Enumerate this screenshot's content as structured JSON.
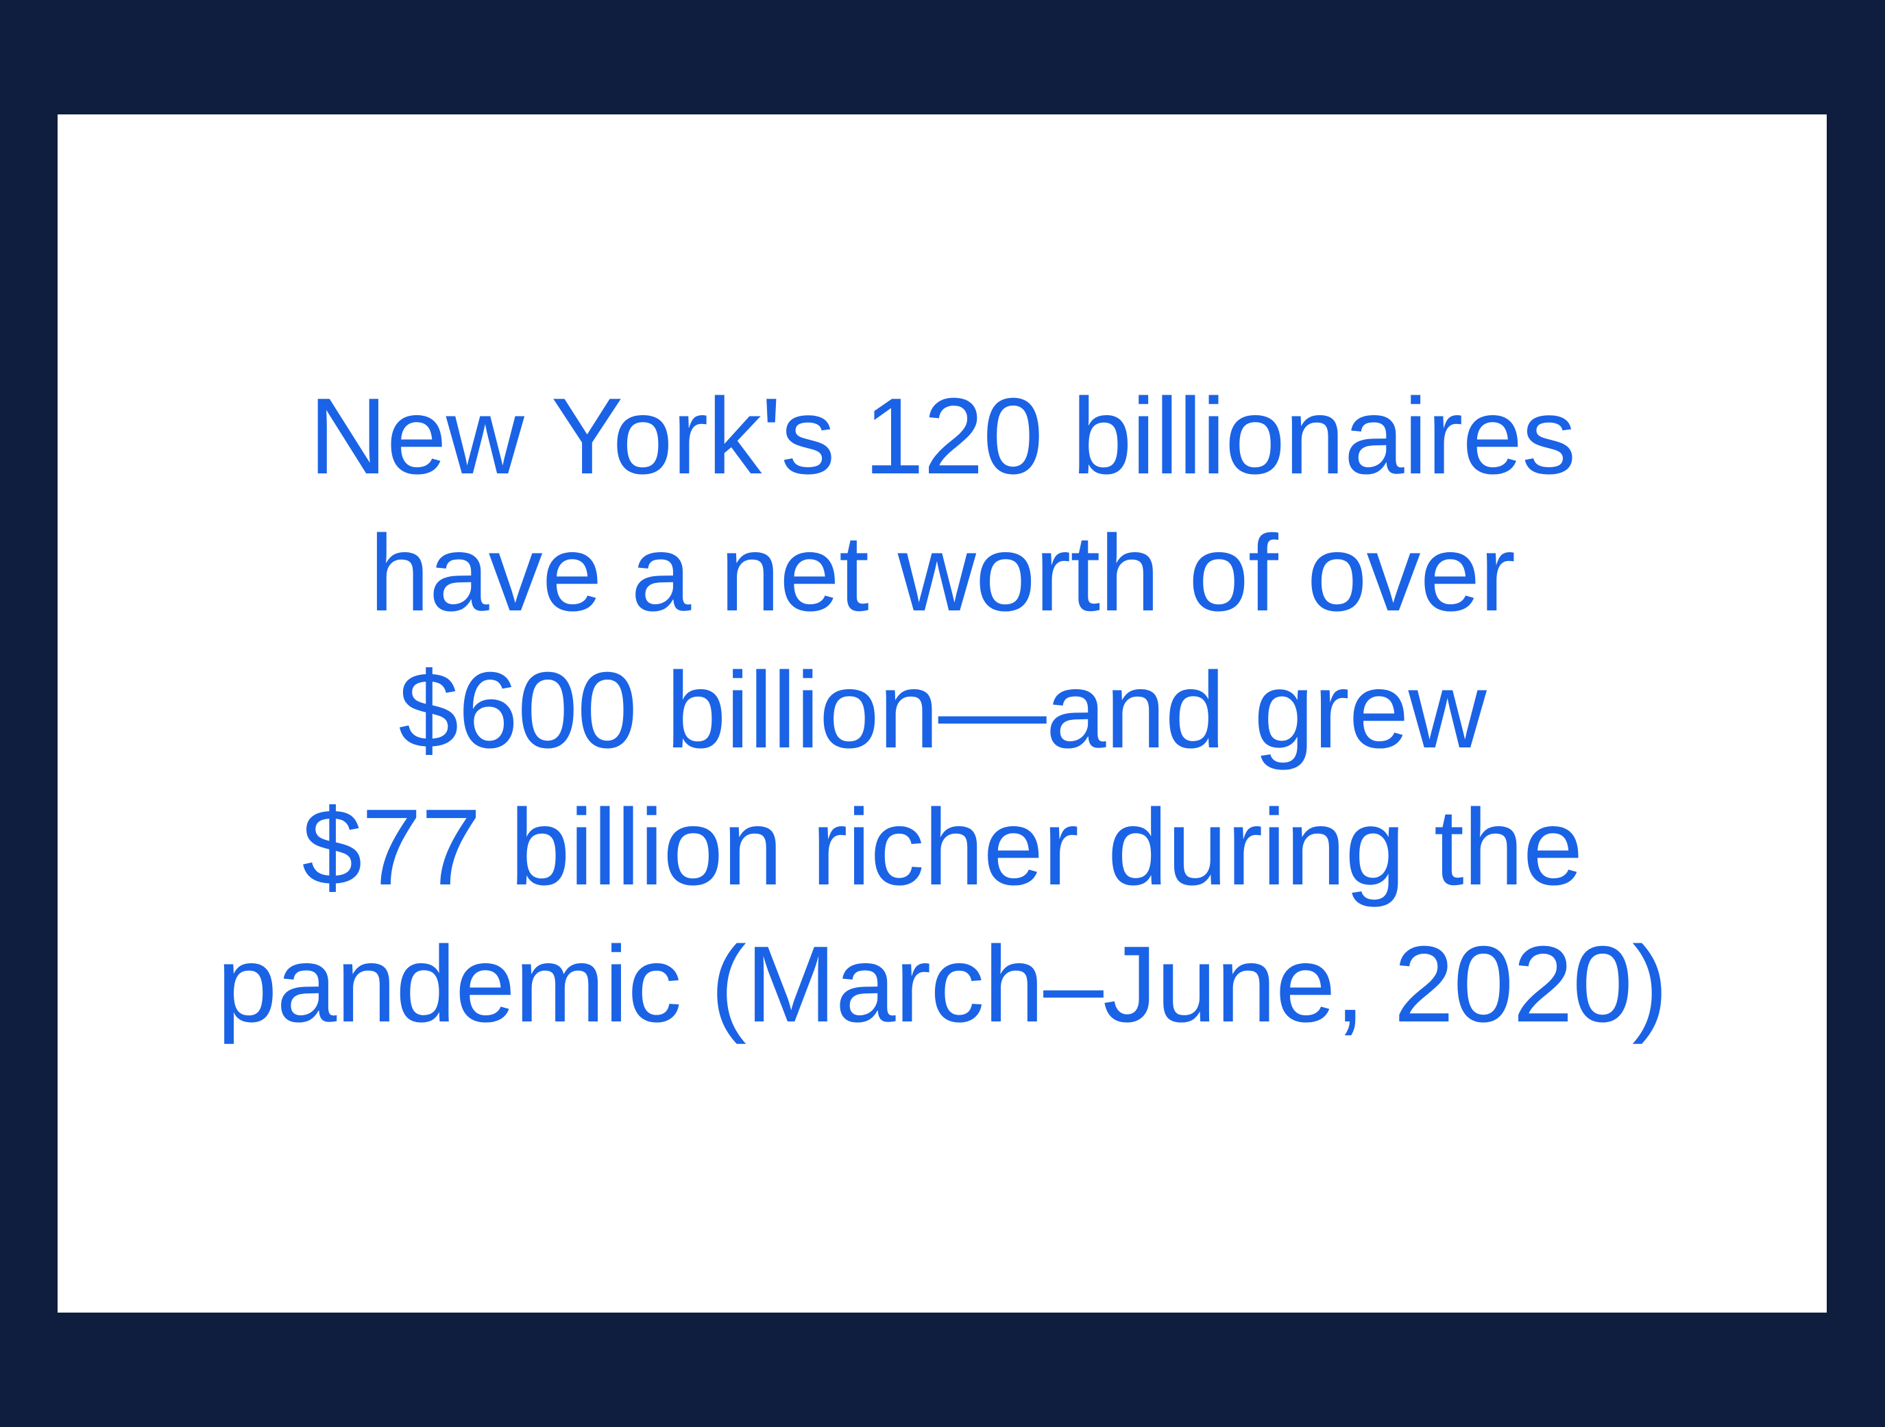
{
  "colors": {
    "frame": "#0f1d3e",
    "card": "#ffffff",
    "text": "#1a63e6"
  },
  "statement": {
    "lines": [
      "New York's 120 billionaires",
      "have a net worth of over",
      "$600 billion—and grew",
      "$77 billion richer during the",
      "pandemic (March–June, 2020)"
    ]
  }
}
